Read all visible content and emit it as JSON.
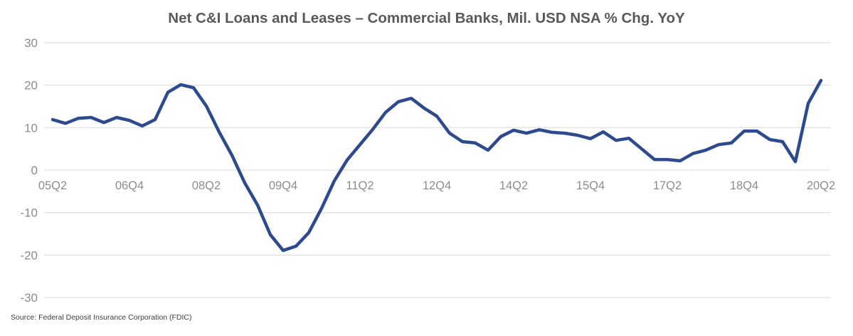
{
  "chart_data": {
    "type": "line",
    "title": "Net C&I Loans and Leases – Commercial Banks, Mil. USD NSA % Chg. YoY",
    "xlabel": "",
    "ylabel": "",
    "ylim": [
      -30,
      30
    ],
    "yticks": [
      30,
      20,
      10,
      0,
      -10,
      -20,
      -30
    ],
    "grid": true,
    "legend": "none",
    "x_tick_labels": [
      "05Q2",
      "06Q4",
      "08Q2",
      "09Q4",
      "11Q2",
      "12Q4",
      "14Q2",
      "15Q4",
      "17Q2",
      "18Q4",
      "20Q2"
    ],
    "x": [
      "05Q2",
      "05Q3",
      "05Q4",
      "06Q1",
      "06Q2",
      "06Q3",
      "06Q4",
      "07Q1",
      "07Q2",
      "07Q3",
      "07Q4",
      "08Q1",
      "08Q2",
      "08Q3",
      "08Q4",
      "09Q1",
      "09Q2",
      "09Q3",
      "09Q4",
      "10Q1",
      "10Q2",
      "10Q3",
      "10Q4",
      "11Q1",
      "11Q2",
      "11Q3",
      "11Q4",
      "12Q1",
      "12Q2",
      "12Q3",
      "12Q4",
      "13Q1",
      "13Q2",
      "13Q3",
      "13Q4",
      "14Q1",
      "14Q2",
      "14Q3",
      "14Q4",
      "15Q1",
      "15Q2",
      "15Q3",
      "15Q4",
      "16Q1",
      "16Q2",
      "16Q3",
      "16Q4",
      "17Q1",
      "17Q2",
      "17Q3",
      "17Q4",
      "18Q1",
      "18Q2",
      "18Q3",
      "18Q4",
      "19Q1",
      "19Q2",
      "19Q3",
      "19Q4",
      "20Q1",
      "20Q2"
    ],
    "series": [
      {
        "name": "Net C&I Loans and Leases % Chg. YoY",
        "color": "#2e4a8e",
        "values": [
          11.9,
          11.0,
          12.2,
          12.4,
          11.2,
          12.4,
          11.7,
          10.4,
          11.9,
          18.3,
          20.1,
          19.4,
          15.1,
          9.0,
          3.5,
          -3.0,
          -8.2,
          -15.2,
          -18.9,
          -17.9,
          -14.7,
          -9.0,
          -2.5,
          2.4,
          6.0,
          9.6,
          13.6,
          16.1,
          16.9,
          14.6,
          12.7,
          8.7,
          6.7,
          6.4,
          4.7,
          7.9,
          9.4,
          8.7,
          9.5,
          8.9,
          8.7,
          8.2,
          7.4,
          9.0,
          7.0,
          7.5,
          5.0,
          2.5,
          2.5,
          2.2,
          3.9,
          4.7,
          6.0,
          6.4,
          9.2,
          9.2,
          7.2,
          6.7,
          2.0,
          15.7,
          21.1
        ]
      }
    ],
    "source": "Source: Federal Deposit Insurance Corporation (FDIC)"
  },
  "colors": {
    "line": "#2e4a8e",
    "grid": "#d9d9d9",
    "axis_text": "#8c8c8c",
    "title_text": "#595959"
  }
}
